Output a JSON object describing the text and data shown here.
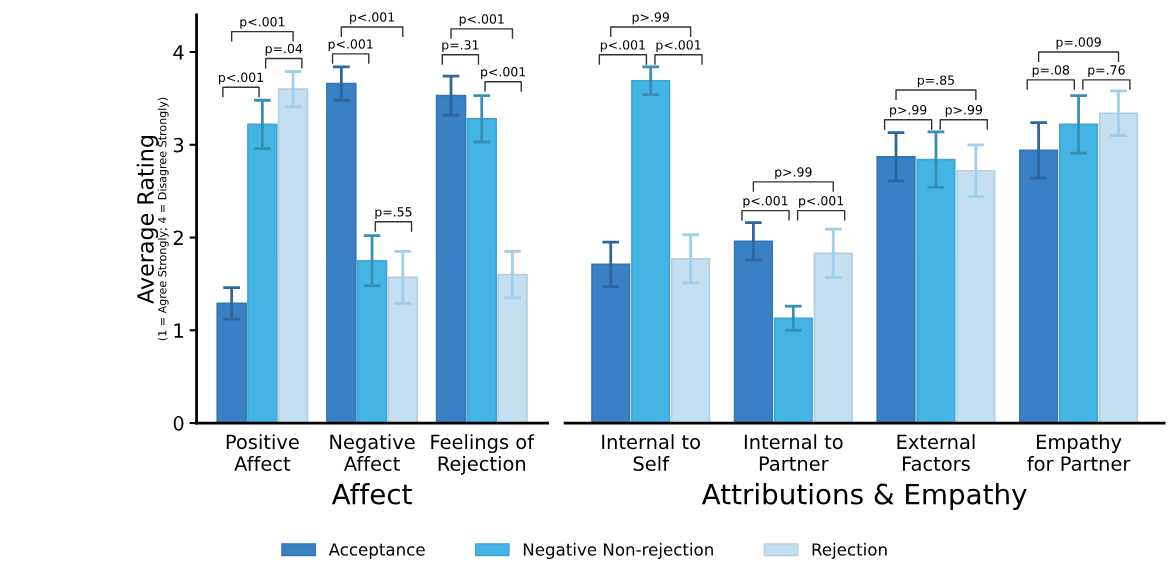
{
  "chart_data": [
    {
      "type": "bar",
      "xlabel": "Affect",
      "ylabel": "Average Rating\n(1 = Agree Strongly; 4 = Disagree Strongly)",
      "categories": [
        "Positive\nAffect",
        "Negative\nAffect",
        "Feelings of\nRejection"
      ],
      "ylim": [
        0,
        4.4
      ],
      "yticks": [
        0,
        1,
        2,
        3,
        4
      ],
      "legend": "bottom",
      "series": [
        {
          "name": "Acceptance",
          "color": "#3a80c4",
          "values": [
            1.29,
            3.66,
            3.53
          ],
          "errors": [
            0.17,
            0.18,
            0.21
          ]
        },
        {
          "name": "Negative Non-rejection",
          "color": "#43b4e4",
          "values": [
            3.22,
            1.75,
            3.28
          ],
          "errors": [
            0.26,
            0.27,
            0.25
          ]
        },
        {
          "name": "Rejection",
          "color": "#c5dff2",
          "values": [
            3.6,
            1.57,
            1.6
          ],
          "errors": [
            0.19,
            0.28,
            0.25
          ]
        }
      ],
      "annotations": [
        "p<.001",
        "p=.04",
        "p<.001",
        "p<.001",
        "p<.001",
        "p=.55",
        "p=.31",
        "p<.001",
        "p<.001"
      ]
    },
    {
      "type": "bar",
      "xlabel": "Attributions & Empathy",
      "categories": [
        "Internal to\nSelf",
        "Internal to\nPartner",
        "External\nFactors",
        "Empathy\nfor Partner"
      ],
      "ylim": [
        0,
        4
      ],
      "yticks": [
        0,
        1,
        2,
        3,
        4
      ],
      "tick_labels": "x",
      "series": [
        {
          "color": "#3a80c4",
          "values": [
            1.71,
            1.96,
            2.87,
            2.94
          ],
          "errors": [
            0.24,
            0.2,
            0.26,
            0.3
          ]
        },
        {
          "color": "#43b4e4",
          "values": [
            3.69,
            1.13,
            2.84,
            3.22
          ],
          "errors": [
            0.15,
            0.13,
            0.3,
            0.31
          ]
        },
        {
          "color": "#c5dff2",
          "values": [
            1.77,
            1.83,
            2.72,
            3.34
          ],
          "errors": [
            0.26,
            0.26,
            0.28,
            0.24
          ]
        }
      ],
      "annotations": [
        "p<.001",
        "p<.001",
        "p>.99",
        "p<.001",
        "p<.001",
        "p>.99",
        "p>.99",
        "p>.99",
        "p=.85",
        "p=.08",
        "p=.76",
        "p=.009"
      ]
    }
  ]
}
